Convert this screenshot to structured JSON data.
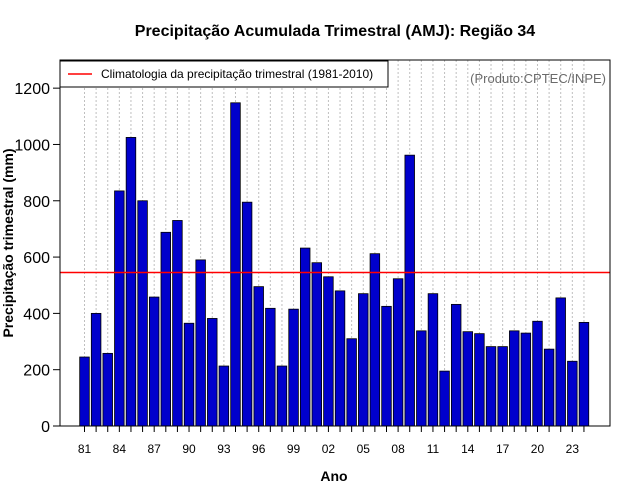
{
  "chart_data": {
    "type": "bar",
    "title": "Precipitação Acumulada Trimestral (AMJ): Região 34",
    "xlabel": "Ano",
    "ylabel": "Precipitação trimestral (mm)",
    "source": "(Produto:CPTEC/INPE)",
    "legend": {
      "label": "Climatologia da precipitação trimestral (1981-2010)",
      "position": "top-left"
    },
    "climatology": 545,
    "ylim": [
      0,
      1300
    ],
    "yticks": [
      "0",
      "200",
      "400",
      "600",
      "800",
      "1000",
      "1200"
    ],
    "ytick_values": [
      0,
      200,
      400,
      600,
      800,
      1000,
      1200
    ],
    "categories": [
      "81",
      "82",
      "83",
      "84",
      "85",
      "86",
      "87",
      "88",
      "89",
      "90",
      "91",
      "92",
      "93",
      "94",
      "95",
      "96",
      "97",
      "98",
      "99",
      "00",
      "01",
      "02",
      "03",
      "04",
      "05",
      "06",
      "07",
      "08",
      "09",
      "10",
      "11",
      "12",
      "13",
      "14",
      "15",
      "16",
      "17",
      "18",
      "19",
      "20",
      "21",
      "22",
      "23",
      "24"
    ],
    "x_tick_labels": [
      "81",
      "84",
      "87",
      "90",
      "93",
      "96",
      "99",
      "02",
      "05",
      "08",
      "11",
      "14",
      "17",
      "20",
      "23"
    ],
    "values": [
      245,
      400,
      258,
      835,
      1025,
      800,
      458,
      688,
      730,
      365,
      590,
      382,
      213,
      1148,
      795,
      495,
      418,
      213,
      415,
      632,
      580,
      530,
      480,
      310,
      470,
      612,
      425,
      523,
      962,
      338,
      470,
      195,
      432,
      335,
      328,
      282,
      282,
      338,
      330,
      372,
      273,
      455,
      230,
      368
    ],
    "colors": {
      "bar": "#0000cc",
      "bar_edge": "#000000",
      "climatology": "#ff0000",
      "grid": "#bfbfbf"
    },
    "grid": true
  }
}
